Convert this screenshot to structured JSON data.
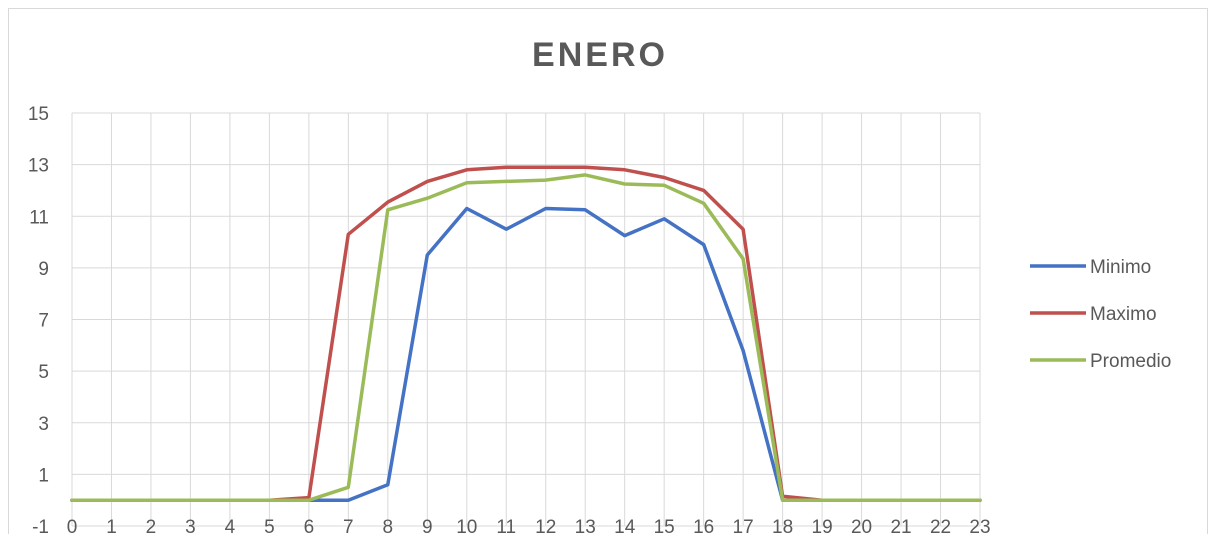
{
  "chart_data": {
    "type": "line",
    "title": "ENERO",
    "xlabel": "",
    "ylabel": "",
    "x": [
      0,
      1,
      2,
      3,
      4,
      5,
      6,
      7,
      8,
      9,
      10,
      11,
      12,
      13,
      14,
      15,
      16,
      17,
      18,
      19,
      20,
      21,
      22,
      23
    ],
    "ylim": [
      -1,
      15
    ],
    "y_ticks": [
      -1,
      1,
      3,
      5,
      7,
      9,
      11,
      13,
      15
    ],
    "grid": true,
    "legend_position": "right",
    "series": [
      {
        "name": "Minimo",
        "color": "#4472c4",
        "values": [
          0,
          0,
          0,
          0,
          0,
          0,
          0,
          0,
          0.6,
          9.5,
          11.3,
          10.5,
          11.3,
          11.25,
          10.25,
          10.9,
          9.9,
          5.8,
          0,
          0,
          0,
          0,
          0,
          0
        ]
      },
      {
        "name": "Maximo",
        "color": "#c0504d",
        "values": [
          0,
          0,
          0,
          0,
          0,
          0,
          0.1,
          10.3,
          11.55,
          12.35,
          12.8,
          12.9,
          12.9,
          12.9,
          12.8,
          12.5,
          12.0,
          10.5,
          0.15,
          0,
          0,
          0,
          0,
          0
        ]
      },
      {
        "name": "Promedio",
        "color": "#9bbb59",
        "values": [
          0,
          0,
          0,
          0,
          0,
          0,
          0,
          0.5,
          11.25,
          11.7,
          12.3,
          12.35,
          12.4,
          12.6,
          12.25,
          12.2,
          11.5,
          9.35,
          0,
          0,
          0,
          0,
          0,
          0
        ]
      }
    ]
  }
}
